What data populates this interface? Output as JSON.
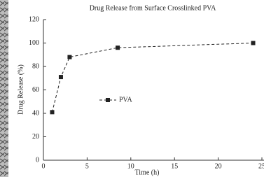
{
  "chart_data": {
    "type": "line",
    "title": "Drug Release from Surface Crosslinked PVA",
    "x_label": "Time (h)",
    "y_label": "Drug Release (%)",
    "series": [
      {
        "name": "PVA",
        "color": "#222222",
        "x": [
          1,
          2,
          3,
          8.5,
          24
        ],
        "values": [
          41,
          71,
          88,
          96,
          100
        ]
      }
    ],
    "xlim": [
      0,
      25
    ],
    "xticks": [
      0,
      5,
      10,
      15,
      20,
      25
    ],
    "ylim": [
      0,
      120
    ],
    "yticks": [
      0,
      20,
      40,
      60,
      80,
      100,
      120
    ],
    "grid": false
  }
}
